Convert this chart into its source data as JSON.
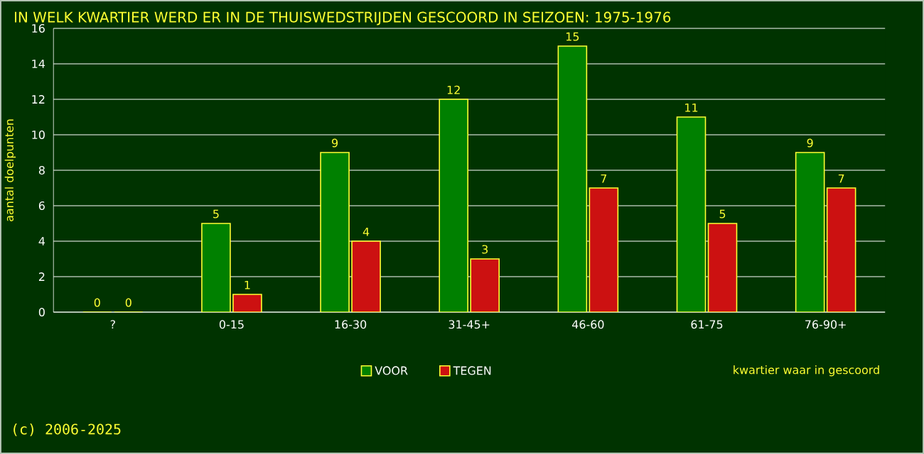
{
  "chart_data": {
    "type": "bar",
    "title": "IN WELK KWARTIER WERD ER IN DE THUISWEDSTRIJDEN GESCOORD IN SEIZOEN: 1975-1976",
    "xlabel": "kwartier waar in gescoord",
    "ylabel": "aantal doelpunten",
    "categories": [
      "?",
      "0-15",
      "16-30",
      "31-45+",
      "46-60",
      "61-75",
      "76-90+"
    ],
    "series": [
      {
        "name": "VOOR",
        "color": "#008000",
        "values": [
          0,
          5,
          9,
          12,
          15,
          11,
          9
        ]
      },
      {
        "name": "TEGEN",
        "color": "#cc1111",
        "values": [
          0,
          1,
          4,
          3,
          7,
          5,
          7
        ]
      }
    ],
    "ylim": [
      0,
      16
    ],
    "yticks": [
      0,
      2,
      4,
      6,
      8,
      10,
      12,
      14,
      16
    ],
    "grid": "y",
    "legend": "bottom",
    "data_labels": true,
    "annotations": [
      "(c) 2006-2025"
    ]
  }
}
